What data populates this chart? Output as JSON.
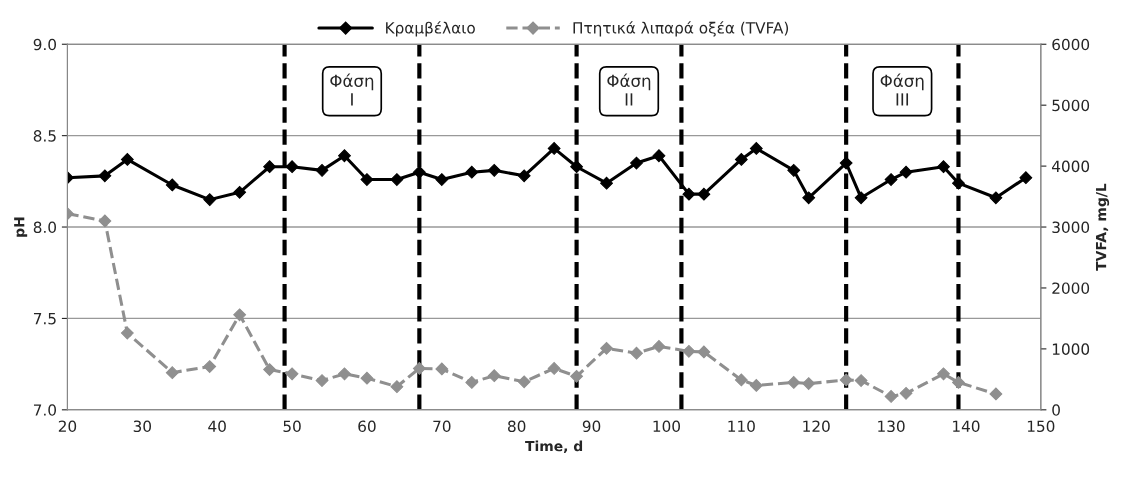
{
  "chart_data": {
    "type": "line",
    "xlabel": "Time, d",
    "ylabel": "pH",
    "y2label": "TVFA, mg/L",
    "xlim": [
      20,
      150
    ],
    "xticks": [
      20,
      30,
      40,
      50,
      60,
      70,
      80,
      90,
      100,
      110,
      120,
      130,
      140,
      150
    ],
    "ylim": [
      7,
      9
    ],
    "yticks": [
      {
        "value": 7,
        "label": "7.0"
      },
      {
        "value": 7.5,
        "label": "7.5"
      },
      {
        "value": 8,
        "label": "8.0"
      },
      {
        "value": 8.5,
        "label": "8.5"
      },
      {
        "value": 9,
        "label": "9.0"
      }
    ],
    "y2lim": [
      0,
      6000
    ],
    "y2ticks": [
      0,
      1000,
      2000,
      3000,
      4000,
      5000,
      6000
    ],
    "grid": "y",
    "legend": "top",
    "marker": "diamond",
    "series": [
      {
        "name": "Κραμβέλαιο",
        "color": "#000000",
        "line_style": "solid",
        "x": [
          20,
          25,
          28,
          34,
          39,
          43,
          47,
          50,
          54,
          57,
          60,
          64,
          67,
          70,
          74,
          77,
          81,
          85,
          88,
          92,
          96,
          99,
          103,
          105,
          110,
          112,
          117,
          119,
          124,
          126,
          130,
          132,
          137,
          139,
          144,
          148
        ],
        "values": [
          8.27,
          8.28,
          8.37,
          8.23,
          8.15,
          8.19,
          8.33,
          8.33,
          8.31,
          8.39,
          8.26,
          8.26,
          8.3,
          8.26,
          8.3,
          8.31,
          8.28,
          8.43,
          8.33,
          8.24,
          8.35,
          8.39,
          8.18,
          8.18,
          8.37,
          8.43,
          8.31,
          8.16,
          8.35,
          8.16,
          8.26,
          8.3,
          8.33,
          8.24,
          8.16,
          8.27
        ]
      },
      {
        "name": "Πτητικά λιπαρά οξέα (TVFA)",
        "color": "#8f8f8f",
        "line_style": "dashed",
        "axis": "y2",
        "x": [
          20,
          25,
          28,
          34,
          39,
          43,
          47,
          50,
          54,
          57,
          60,
          64,
          67,
          70,
          74,
          77,
          81,
          85,
          88,
          92,
          96,
          99,
          103,
          105,
          110,
          112,
          117,
          119,
          124,
          126,
          130,
          132,
          137,
          139,
          144
        ],
        "values": [
          3220,
          3100,
          1260,
          610,
          710,
          1560,
          660,
          590,
          480,
          590,
          520,
          380,
          680,
          670,
          450,
          560,
          460,
          680,
          550,
          1010,
          930,
          1040,
          960,
          950,
          490,
          400,
          450,
          430,
          490,
          480,
          220,
          270,
          590,
          450,
          260
        ]
      }
    ],
    "ref_lines": [
      {
        "axis": "x",
        "value": 49,
        "color": "#000000",
        "line_style": "dashed"
      },
      {
        "axis": "x",
        "value": 67,
        "color": "#000000",
        "line_style": "dashed"
      },
      {
        "axis": "x",
        "value": 88,
        "color": "#000000",
        "line_style": "dashed"
      },
      {
        "axis": "x",
        "value": 102,
        "color": "#000000",
        "line_style": "dashed"
      },
      {
        "axis": "x",
        "value": 124,
        "color": "#000000",
        "line_style": "dashed"
      },
      {
        "axis": "x",
        "value": 139,
        "color": "#000000",
        "line_style": "dashed"
      }
    ],
    "annotations": [
      "Φάση\nI",
      "Φάση\nII",
      "Φάση\nIII"
    ]
  }
}
